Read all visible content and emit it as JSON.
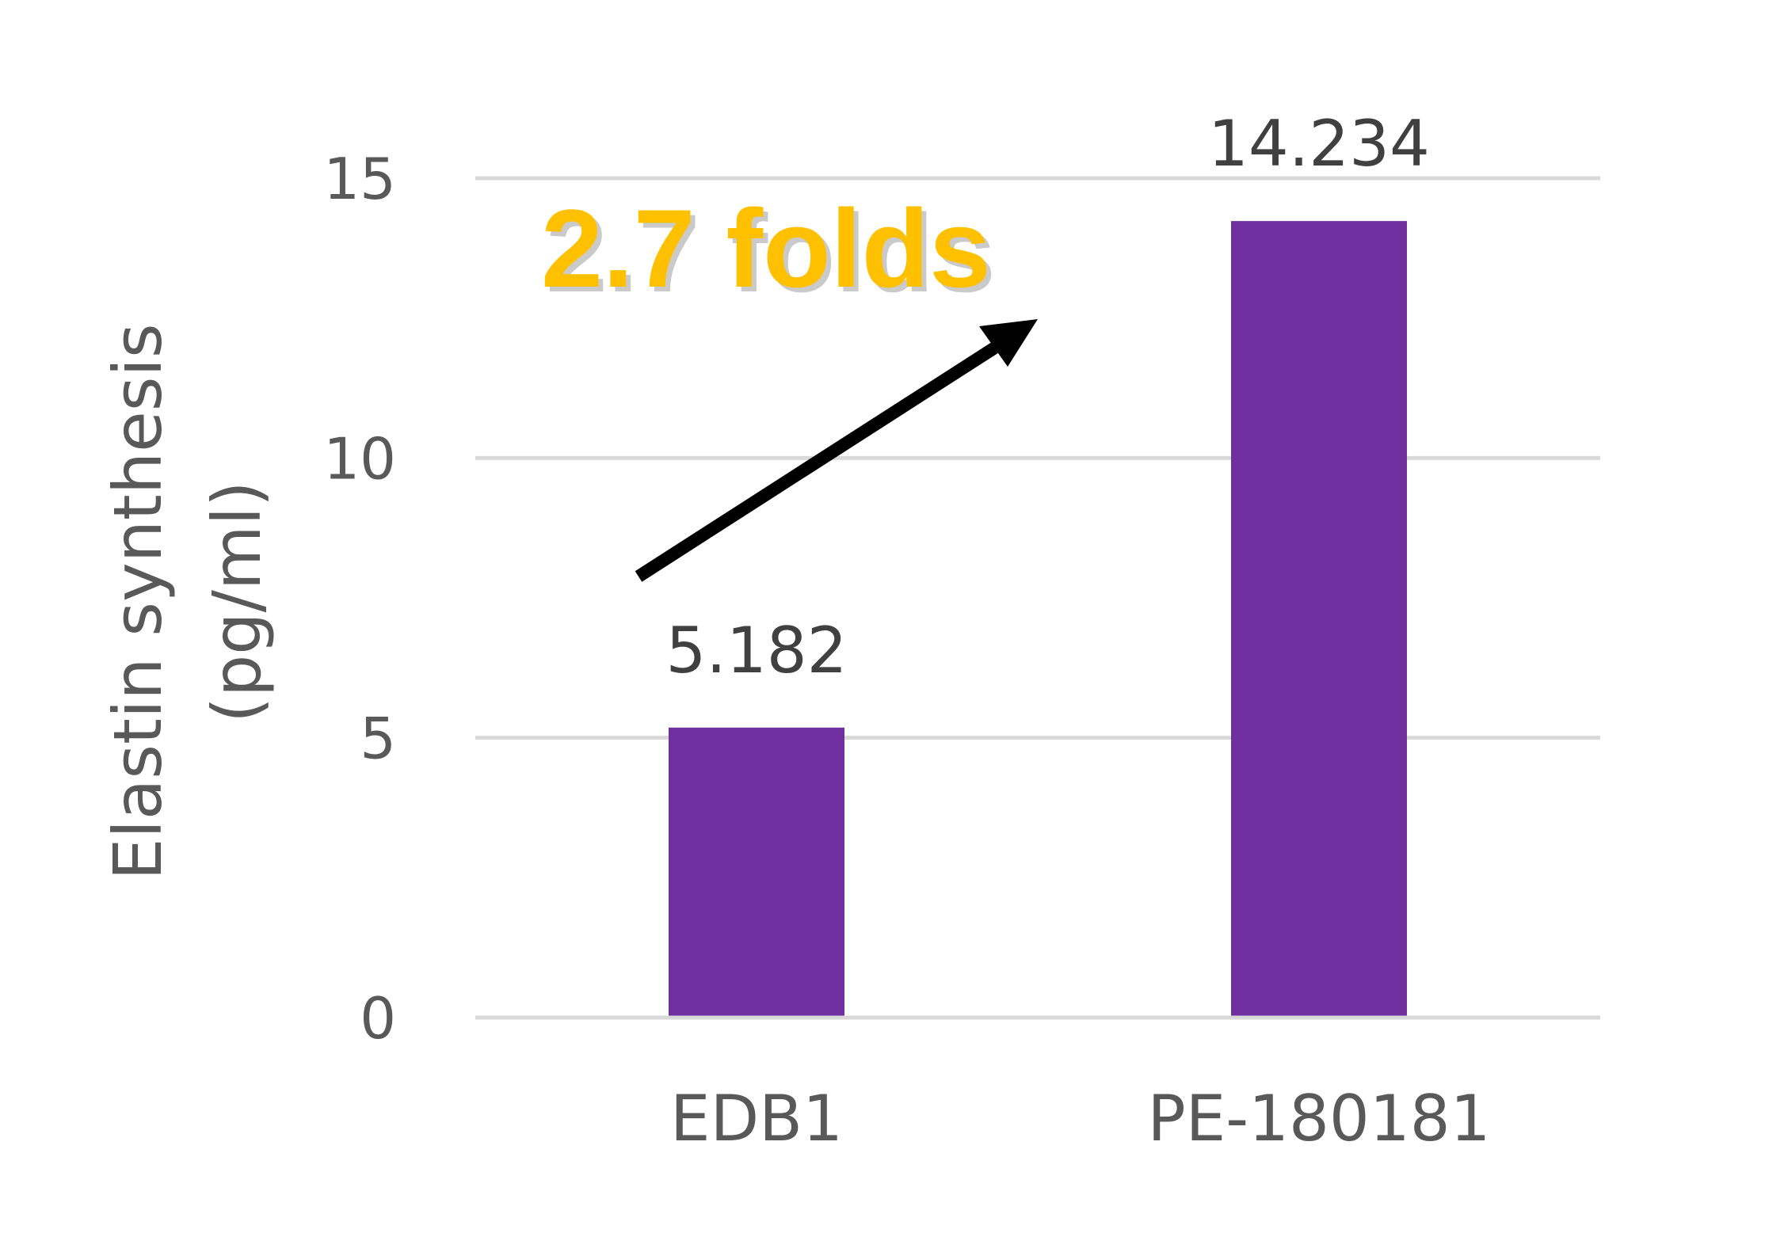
{
  "chart_data": {
    "type": "bar",
    "categories": [
      "EDB1",
      "PE-180181"
    ],
    "values": [
      5.182,
      14.234
    ],
    "data_labels": [
      "5.182",
      "14.234"
    ],
    "ylabel_lines": [
      "Elastin synthesis",
      "(pg/ml)"
    ],
    "xlabel": "",
    "ylim": [
      0,
      15
    ],
    "yticks": [
      0,
      5,
      10,
      15
    ],
    "grid": true,
    "legend": "none",
    "annotation": {
      "text": "2.7 folds",
      "color": "#FFC000",
      "arrow_color": "#000000"
    },
    "colors": {
      "bar": "#7030A0",
      "grid": "#D9D9D9"
    }
  }
}
